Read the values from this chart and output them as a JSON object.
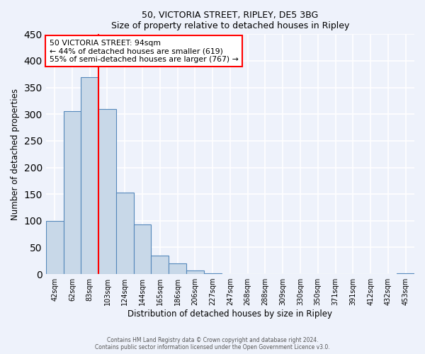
{
  "title": "50, VICTORIA STREET, RIPLEY, DE5 3BG",
  "subtitle": "Size of property relative to detached houses in Ripley",
  "xlabel": "Distribution of detached houses by size in Ripley",
  "ylabel": "Number of detached properties",
  "bar_labels": [
    "42sqm",
    "62sqm",
    "83sqm",
    "103sqm",
    "124sqm",
    "144sqm",
    "165sqm",
    "186sqm",
    "206sqm",
    "227sqm",
    "247sqm",
    "268sqm",
    "288sqm",
    "309sqm",
    "330sqm",
    "350sqm",
    "371sqm",
    "391sqm",
    "412sqm",
    "432sqm",
    "453sqm"
  ],
  "bar_values": [
    100,
    305,
    370,
    310,
    153,
    93,
    35,
    20,
    7,
    1,
    0,
    0,
    0,
    0,
    0,
    0,
    0,
    0,
    0,
    0,
    2
  ],
  "bar_color": "#c8d8e8",
  "bar_edge_color": "#5588bb",
  "property_line_x": 2.5,
  "annotation_text": "50 VICTORIA STREET: 94sqm\n← 44% of detached houses are smaller (619)\n55% of semi-detached houses are larger (767) →",
  "annotation_box_color": "white",
  "annotation_box_edge_color": "red",
  "vline_color": "red",
  "ylim": [
    0,
    450
  ],
  "footer_line1": "Contains HM Land Registry data © Crown copyright and database right 2024.",
  "footer_line2": "Contains public sector information licensed under the Open Government Licence v3.0.",
  "background_color": "#eef2fb",
  "grid_color": "white"
}
